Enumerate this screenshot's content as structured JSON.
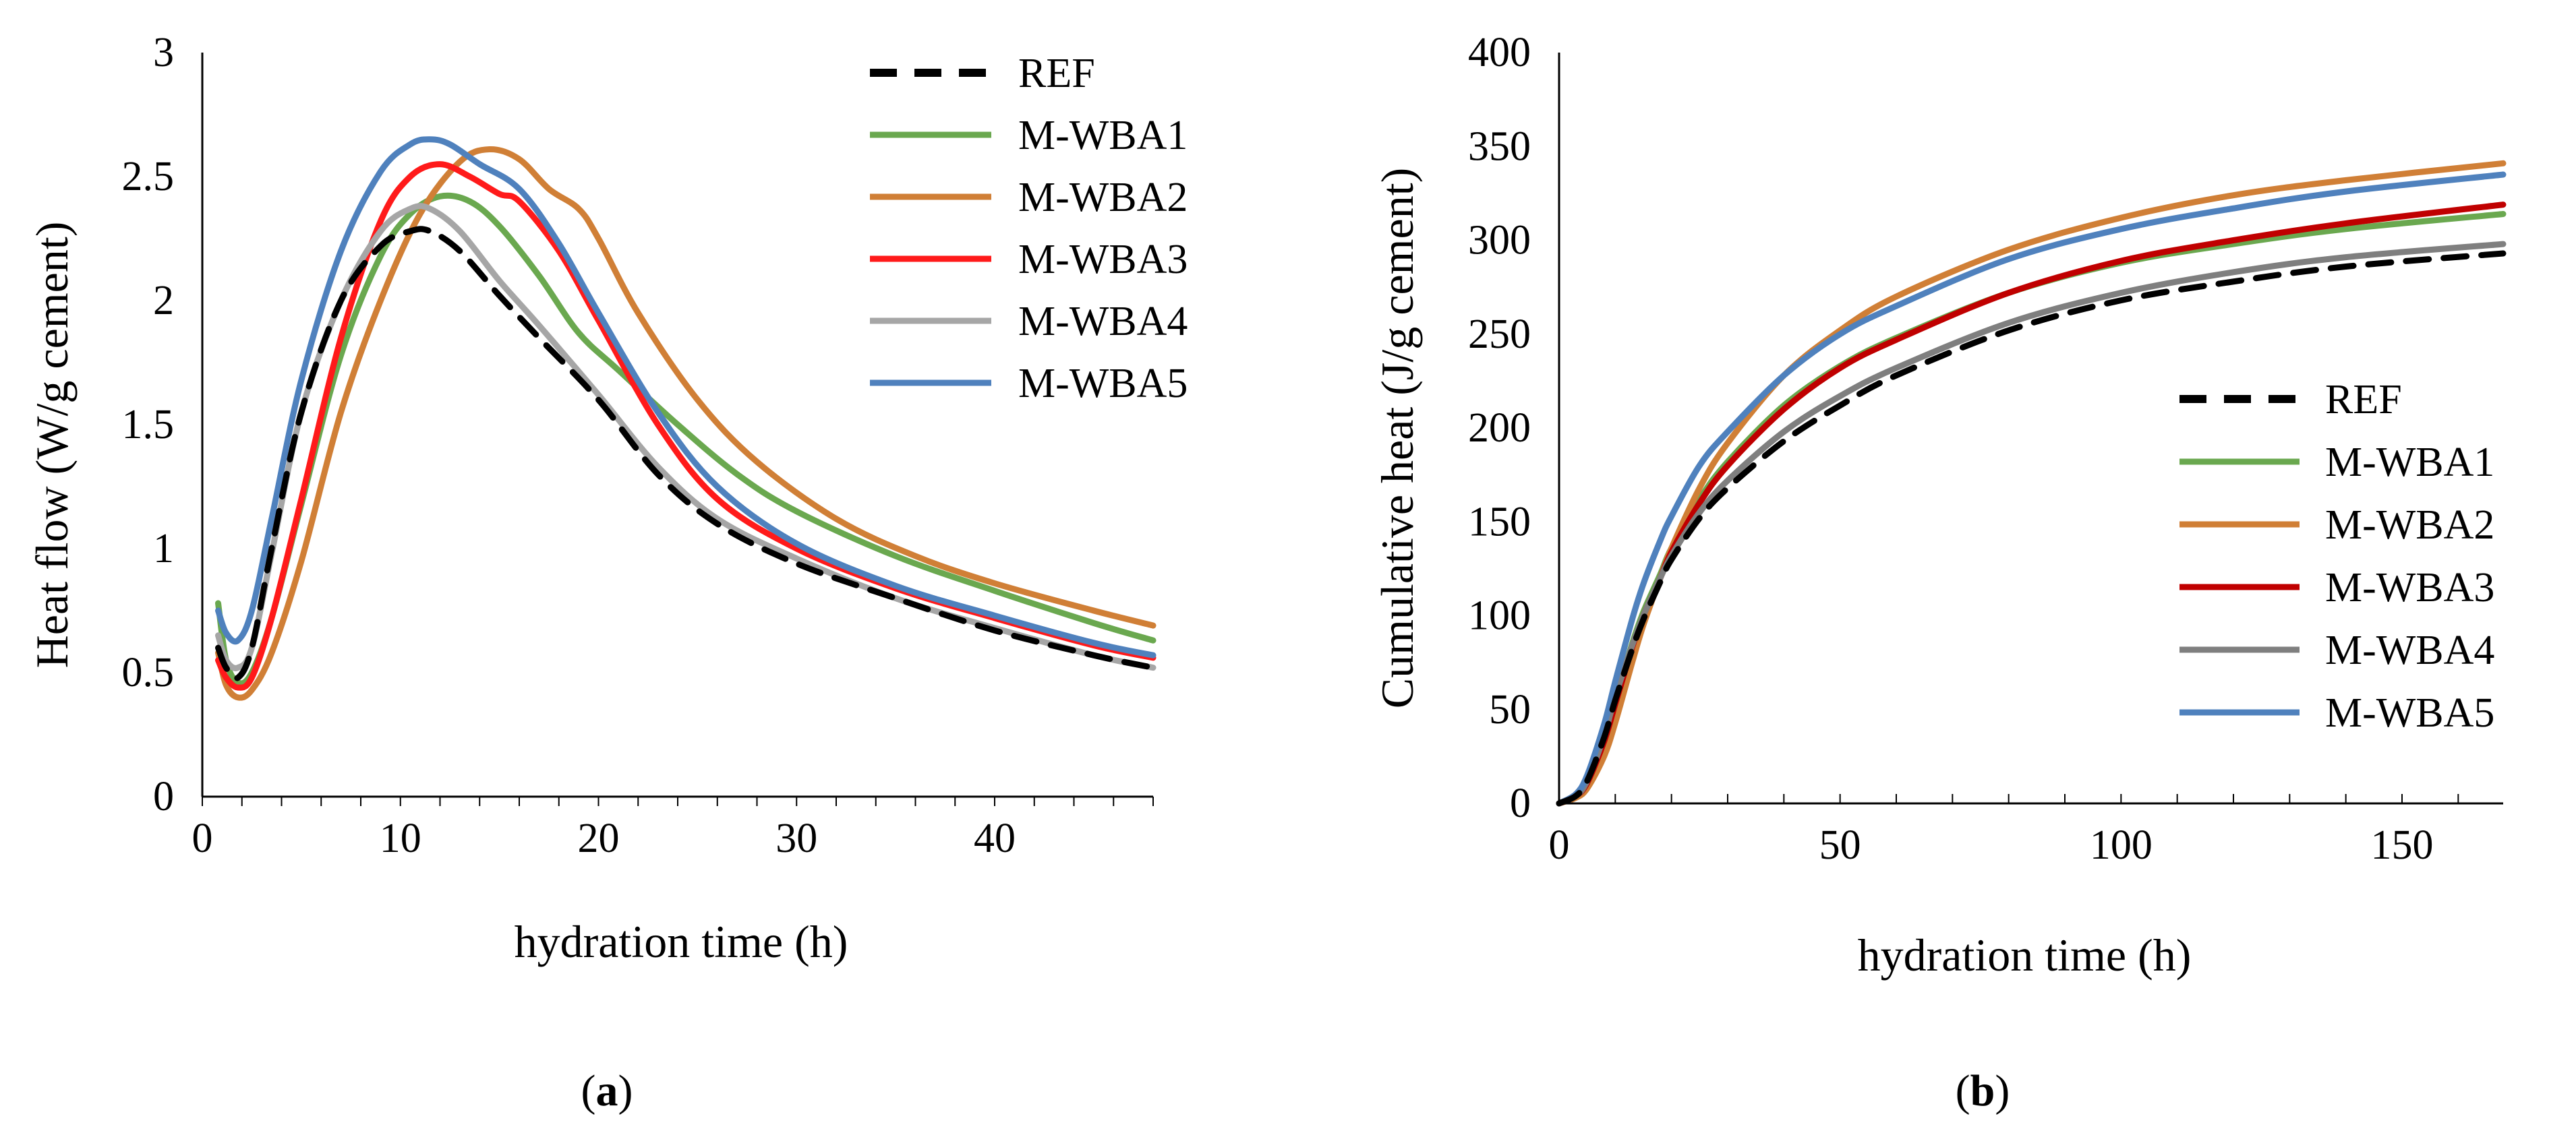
{
  "colors": {
    "REF": "#000000",
    "M-WBA1": "#6aa84f",
    "M-WBA2": "#d07f36",
    "M-WBA3": "#ff1a1a",
    "M-WBA4": "#a6a6a6",
    "M-WBA5": "#4f81bd",
    "M-WBA3_b": "#c00000",
    "M-WBA4_b": "#7f7f7f"
  },
  "chart_data": [
    {
      "type": "line",
      "caption": "a",
      "xlabel": "hydration time (h)",
      "ylabel": "Heat flow (W/g cement)",
      "xlim": [
        0,
        48
      ],
      "ylim": [
        0,
        3
      ],
      "x_ticks": [
        0,
        10,
        20,
        30,
        40
      ],
      "y_ticks": [
        0,
        0.5,
        1,
        1.5,
        2,
        2.5,
        3
      ],
      "y_tick_labels": [
        "0",
        "0.5",
        "1",
        "1.5",
        "2",
        "2.5",
        "3"
      ],
      "legend": "top-right",
      "series": [
        {
          "name": "REF",
          "dashed": true,
          "color_key": "REF",
          "x": [
            0.8,
            1.2,
            1.8,
            2.5,
            3.5,
            5,
            7,
            9,
            10.5,
            11.5,
            13,
            15,
            17,
            20,
            23,
            26,
            30,
            35,
            40,
            45,
            48
          ],
          "y": [
            0.6,
            0.52,
            0.48,
            0.6,
            1.0,
            1.55,
            2.0,
            2.22,
            2.28,
            2.28,
            2.2,
            2.02,
            1.85,
            1.6,
            1.3,
            1.1,
            0.94,
            0.8,
            0.67,
            0.57,
            0.52
          ]
        },
        {
          "name": "M-WBA1",
          "dashed": false,
          "color_key": "M-WBA1",
          "x": [
            0.8,
            1.2,
            1.8,
            2.5,
            3.5,
            5,
            7,
            9,
            10.5,
            12,
            13.5,
            15,
            17,
            19,
            21,
            24,
            27,
            30,
            35,
            40,
            45,
            48
          ],
          "y": [
            0.78,
            0.55,
            0.46,
            0.5,
            0.72,
            1.18,
            1.78,
            2.18,
            2.35,
            2.42,
            2.4,
            2.3,
            2.1,
            1.87,
            1.72,
            1.5,
            1.3,
            1.15,
            0.97,
            0.83,
            0.7,
            0.63
          ]
        },
        {
          "name": "M-WBA2",
          "dashed": false,
          "color_key": "M-WBA2",
          "x": [
            0.8,
            1.2,
            1.8,
            2.5,
            3.5,
            5,
            7,
            9,
            11,
            13,
            14.5,
            16,
            17.5,
            19,
            20,
            22,
            25,
            28,
            32,
            36,
            40,
            45,
            48
          ],
          "y": [
            0.58,
            0.45,
            0.4,
            0.43,
            0.58,
            0.95,
            1.55,
            2.0,
            2.35,
            2.56,
            2.61,
            2.57,
            2.45,
            2.37,
            2.25,
            1.95,
            1.6,
            1.35,
            1.12,
            0.97,
            0.86,
            0.75,
            0.69
          ]
        },
        {
          "name": "M-WBA3",
          "dashed": false,
          "color_key": "M-WBA3",
          "x": [
            0.8,
            1.2,
            1.8,
            2.5,
            3.5,
            5,
            7,
            9,
            10.5,
            12,
            13.5,
            15,
            16,
            18,
            20,
            23,
            26,
            30,
            35,
            40,
            45,
            48
          ],
          "y": [
            0.55,
            0.48,
            0.44,
            0.48,
            0.72,
            1.2,
            1.85,
            2.32,
            2.5,
            2.55,
            2.5,
            2.43,
            2.4,
            2.2,
            1.92,
            1.5,
            1.2,
            1.0,
            0.84,
            0.72,
            0.61,
            0.56
          ]
        },
        {
          "name": "M-WBA4",
          "dashed": false,
          "color_key": "M-WBA4",
          "x": [
            0.8,
            1.2,
            1.8,
            2.5,
            3.5,
            5,
            7,
            9,
            10.5,
            11.5,
            13,
            15,
            17,
            20,
            23,
            26,
            30,
            35,
            40,
            45,
            48
          ],
          "y": [
            0.65,
            0.55,
            0.52,
            0.6,
            0.98,
            1.55,
            2.0,
            2.28,
            2.37,
            2.37,
            2.28,
            2.08,
            1.9,
            1.62,
            1.33,
            1.12,
            0.96,
            0.8,
            0.68,
            0.57,
            0.52
          ]
        },
        {
          "name": "M-WBA5",
          "dashed": false,
          "color_key": "M-WBA5",
          "x": [
            0.8,
            1.2,
            1.8,
            2.5,
            3.5,
            5,
            7,
            9,
            10.5,
            11.5,
            12.5,
            14,
            16,
            18,
            20,
            23,
            26,
            30,
            35,
            40,
            45,
            48
          ],
          "y": [
            0.75,
            0.66,
            0.63,
            0.75,
            1.12,
            1.68,
            2.2,
            2.52,
            2.63,
            2.65,
            2.63,
            2.55,
            2.45,
            2.23,
            1.95,
            1.55,
            1.25,
            1.02,
            0.85,
            0.73,
            0.62,
            0.57
          ]
        }
      ]
    },
    {
      "type": "line",
      "caption": "b",
      "xlabel": "hydration time (h)",
      "ylabel": "Cumulative heat  (J/g cement)",
      "xlim": [
        0,
        168
      ],
      "ylim": [
        0,
        400
      ],
      "x_ticks": [
        0,
        50,
        100,
        150
      ],
      "y_ticks": [
        0,
        50,
        100,
        150,
        200,
        250,
        300,
        350,
        400
      ],
      "legend": "center-right",
      "series": [
        {
          "name": "REF",
          "dashed": true,
          "color_key": "REF",
          "x": [
            0,
            3,
            5,
            8,
            10,
            13,
            15,
            18,
            20,
            25,
            30,
            40,
            50,
            60,
            80,
            100,
            120,
            140,
            168
          ],
          "y": [
            0,
            4,
            12,
            35,
            55,
            82,
            98,
            118,
            130,
            152,
            168,
            193,
            212,
            228,
            252,
            268,
            278,
            286,
            293
          ]
        },
        {
          "name": "M-WBA1",
          "dashed": false,
          "color_key": "M-WBA1",
          "x": [
            0,
            3,
            5,
            8,
            10,
            13,
            15,
            18,
            20,
            25,
            30,
            40,
            50,
            60,
            80,
            100,
            120,
            140,
            168
          ],
          "y": [
            0,
            4,
            11,
            34,
            55,
            85,
            102,
            122,
            136,
            162,
            182,
            212,
            233,
            248,
            272,
            288,
            298,
            306,
            314
          ]
        },
        {
          "name": "M-WBA2",
          "dashed": false,
          "color_key": "M-WBA2",
          "x": [
            0,
            3,
            5,
            8,
            10,
            13,
            15,
            18,
            20,
            25,
            30,
            40,
            50,
            60,
            80,
            100,
            120,
            140,
            168
          ],
          "y": [
            0,
            3,
            8,
            25,
            43,
            75,
            95,
            120,
            136,
            168,
            192,
            228,
            252,
            270,
            295,
            312,
            324,
            332,
            341
          ]
        },
        {
          "name": "M-WBA3",
          "dashed": false,
          "color_key": "M-WBA3_b",
          "x": [
            0,
            3,
            5,
            8,
            10,
            13,
            15,
            18,
            20,
            25,
            30,
            40,
            50,
            60,
            80,
            100,
            120,
            140,
            168
          ],
          "y": [
            0,
            4,
            11,
            33,
            53,
            83,
            100,
            120,
            134,
            160,
            180,
            210,
            232,
            247,
            272,
            289,
            300,
            309,
            319
          ]
        },
        {
          "name": "M-WBA4",
          "dashed": false,
          "color_key": "M-WBA4_b",
          "x": [
            0,
            3,
            5,
            8,
            10,
            13,
            15,
            18,
            20,
            25,
            30,
            40,
            50,
            60,
            80,
            100,
            120,
            140,
            168
          ],
          "y": [
            0,
            4,
            12,
            36,
            57,
            84,
            100,
            120,
            132,
            155,
            172,
            198,
            217,
            232,
            256,
            272,
            283,
            291,
            298
          ]
        },
        {
          "name": "M-WBA5",
          "dashed": false,
          "color_key": "M-WBA5",
          "x": [
            0,
            3,
            5,
            8,
            10,
            13,
            15,
            18,
            20,
            25,
            30,
            40,
            50,
            60,
            80,
            100,
            120,
            140,
            168
          ],
          "y": [
            0,
            5,
            15,
            42,
            65,
            98,
            117,
            140,
            153,
            180,
            198,
            228,
            250,
            265,
            290,
            306,
            317,
            326,
            335
          ]
        }
      ]
    }
  ]
}
